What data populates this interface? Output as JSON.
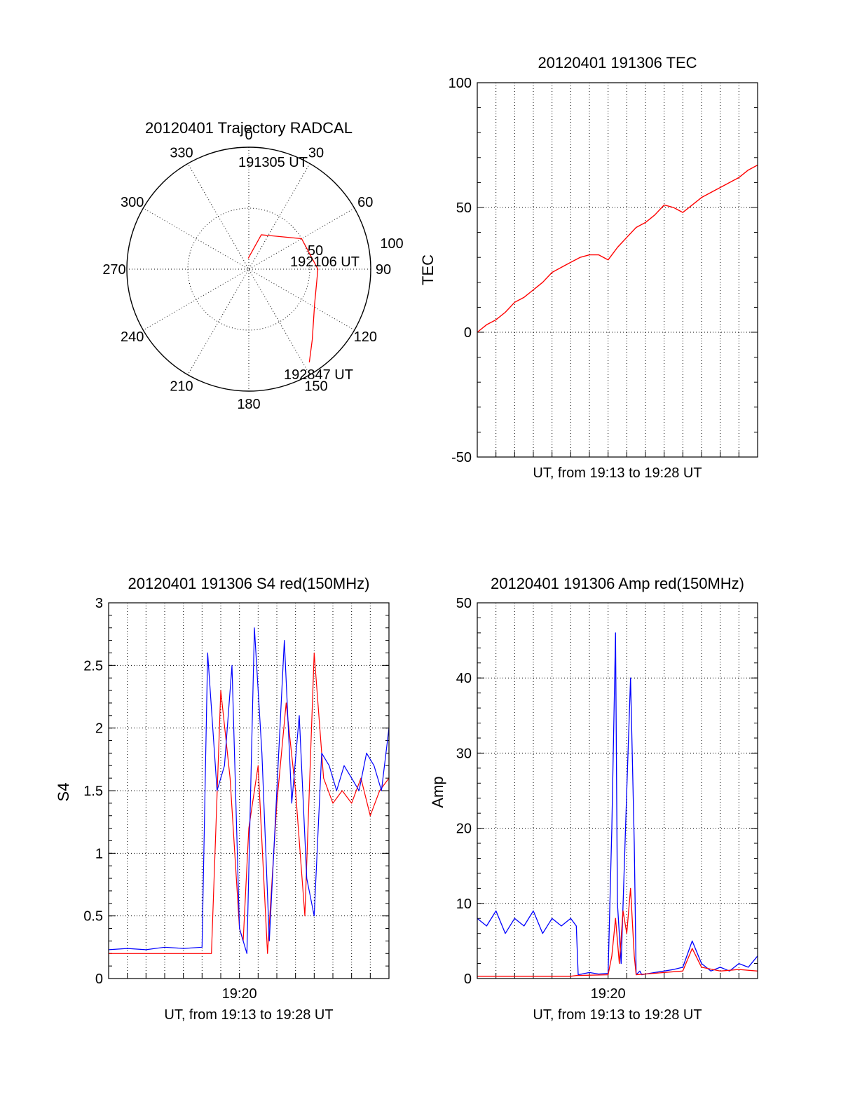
{
  "chart_data": [
    {
      "type": "polar",
      "title": "20120401 Trajectory RADCAL",
      "azimuth_labels": [
        "0",
        "30",
        "60",
        "90",
        "120",
        "150",
        "180",
        "210",
        "240",
        "270",
        "300",
        "330"
      ],
      "radial_labels": [
        "50",
        "100"
      ],
      "track_labels": {
        "start": "191305 UT",
        "middle": "192106 UT",
        "end": "192847 UT"
      },
      "track_color": "#ff0000",
      "track": [
        {
          "az": 357,
          "el": 82
        },
        {
          "az": 20,
          "el": 63
        },
        {
          "az": 60,
          "el": 45
        },
        {
          "az": 90,
          "el": 39
        },
        {
          "az": 118,
          "el": 35
        },
        {
          "az": 138,
          "el": 20
        },
        {
          "az": 147,
          "el": 8
        }
      ]
    },
    {
      "type": "line",
      "title": "20120401 191306 TEC",
      "xlabel": "UT, from 19:13 to 19:28 UT",
      "ylabel": "TEC",
      "ylim": [
        -50,
        100
      ],
      "yticks": [
        "-50",
        "0",
        "50",
        "100"
      ],
      "xlim_min": [
        0,
        15
      ],
      "grid": true,
      "series": [
        {
          "color": "#ff0000",
          "x": [
            0,
            0.5,
            1,
            1.5,
            2,
            2.5,
            3,
            3.5,
            4,
            4.5,
            5,
            5.5,
            6,
            6.5,
            7,
            7.5,
            8,
            8.5,
            9,
            9.5,
            10,
            10.5,
            11,
            11.5,
            12,
            12.5,
            13,
            13.5,
            14,
            14.5,
            15
          ],
          "y": [
            0,
            3,
            5,
            8,
            12,
            14,
            17,
            20,
            24,
            26,
            28,
            30,
            31,
            31,
            29,
            34,
            38,
            42,
            44,
            47,
            51,
            50,
            48,
            51,
            54,
            56,
            58,
            60,
            62,
            65,
            67
          ]
        }
      ]
    },
    {
      "type": "line",
      "title": "20120401 191306 S4 red(150MHz)",
      "xlabel": "UT, from 19:13 to 19:28 UT",
      "ylabel": "S4",
      "ylim": [
        0,
        3
      ],
      "yticks": [
        "0",
        "0.5",
        "1",
        "1.5",
        "2",
        "2.5",
        "3"
      ],
      "xticks": [
        {
          "x": 7,
          "label": "19:20"
        }
      ],
      "xlim_min": [
        0,
        15
      ],
      "grid": true,
      "series": [
        {
          "color": "#ff0000",
          "x": [
            0,
            5.5,
            6,
            6.5,
            7,
            7.2,
            7.5,
            8,
            8.5,
            9,
            9.5,
            10,
            10.5,
            11,
            11.5,
            12,
            12.5,
            13,
            13.5,
            14,
            14.5,
            15
          ],
          "y": [
            0.2,
            0.2,
            2.3,
            1.6,
            0.4,
            0.3,
            1.2,
            1.7,
            0.2,
            1.4,
            2.2,
            1.5,
            0.5,
            2.6,
            1.6,
            1.4,
            1.5,
            1.4,
            1.6,
            1.3,
            1.5,
            1.6
          ]
        },
        {
          "color": "#0000ff",
          "x": [
            0,
            1,
            2,
            3,
            4,
            5,
            5.3,
            5.8,
            6.2,
            6.6,
            7,
            7.4,
            7.8,
            8.2,
            8.6,
            9,
            9.4,
            9.8,
            10.2,
            10.6,
            11,
            11.4,
            11.8,
            12.2,
            12.6,
            13,
            13.4,
            13.8,
            14.2,
            14.6,
            15
          ],
          "y": [
            0.23,
            0.24,
            0.23,
            0.25,
            0.24,
            0.25,
            2.6,
            1.5,
            1.7,
            2.5,
            0.4,
            0.2,
            2.8,
            1.8,
            0.3,
            1.5,
            2.7,
            1.4,
            2.1,
            0.8,
            0.5,
            1.8,
            1.7,
            1.5,
            1.7,
            1.6,
            1.5,
            1.8,
            1.7,
            1.5,
            2.0
          ]
        }
      ]
    },
    {
      "type": "line",
      "title": "20120401 191306 Amp red(150MHz)",
      "xlabel": "UT, from 19:13 to 19:28 UT",
      "ylabel": "Amp",
      "ylim": [
        0,
        50
      ],
      "yticks": [
        "0",
        "10",
        "20",
        "30",
        "40",
        "50"
      ],
      "xticks": [
        {
          "x": 7,
          "label": "19:20"
        }
      ],
      "xlim_min": [
        0,
        15
      ],
      "grid": true,
      "series": [
        {
          "color": "#0000ff",
          "x": [
            0,
            0.5,
            1,
            1.5,
            2,
            2.5,
            3,
            3.5,
            4,
            4.5,
            5,
            5.3,
            5.4,
            6,
            6.5,
            7,
            7.2,
            7.4,
            7.5,
            7.7,
            8,
            8.2,
            8.4,
            8.5,
            8.7,
            8.8,
            9,
            9.5,
            10,
            10.5,
            11,
            11.5,
            12,
            12.5,
            13,
            13.5,
            14,
            14.5,
            15
          ],
          "y": [
            8,
            7,
            9,
            6,
            8,
            7,
            9,
            6,
            8,
            7,
            8,
            7,
            0.5,
            0.8,
            0.6,
            0.7,
            20,
            46,
            10,
            2,
            25,
            40,
            18,
            0.5,
            1,
            0.5,
            0.6,
            0.8,
            1,
            1.2,
            1.5,
            5,
            2,
            1,
            1.5,
            1,
            2,
            1.5,
            3
          ]
        },
        {
          "color": "#ff0000",
          "x": [
            0,
            5,
            5.3,
            7,
            7.2,
            7.4,
            7.6,
            7.8,
            8,
            8.2,
            8.4,
            8.5,
            9,
            10,
            11,
            11.5,
            12,
            13,
            14,
            15
          ],
          "y": [
            0.3,
            0.3,
            0.4,
            0.5,
            3,
            8,
            2,
            9,
            6,
            12,
            3,
            0.5,
            0.6,
            0.8,
            1,
            4,
            1.5,
            1,
            1.2,
            1
          ]
        }
      ]
    }
  ]
}
